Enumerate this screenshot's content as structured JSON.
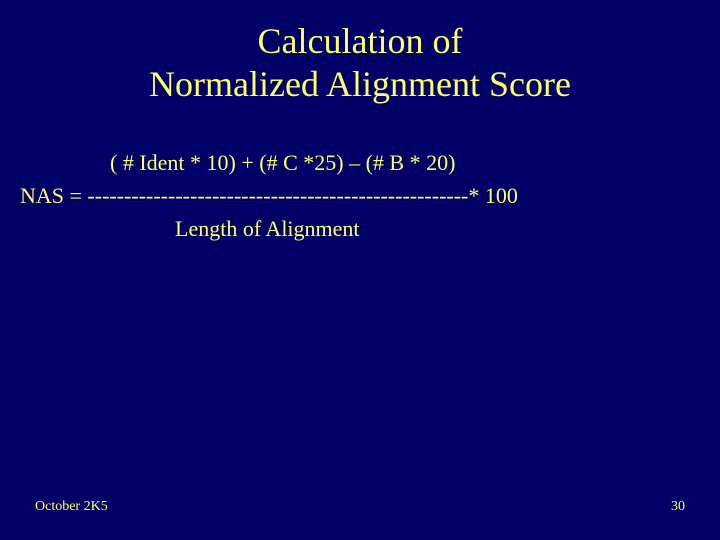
{
  "title": {
    "line1": "Calculation of",
    "line2": "Normalized Alignment Score"
  },
  "formula": {
    "numerator": "( # Ident * 10) + (# C *25) – (# B * 20)",
    "prefix": "NAS  = ",
    "divider": "----------------------------------------------------",
    "suffix": "* 100",
    "denominator": "Length of Alignment"
  },
  "footer": {
    "date": "October 2K5",
    "page": "30"
  },
  "colors": {
    "background": "#000066",
    "text": "#ffff66"
  },
  "typography": {
    "title_fontsize": 36,
    "body_fontsize": 22,
    "footer_fontsize": 14,
    "font_family": "Times New Roman"
  }
}
